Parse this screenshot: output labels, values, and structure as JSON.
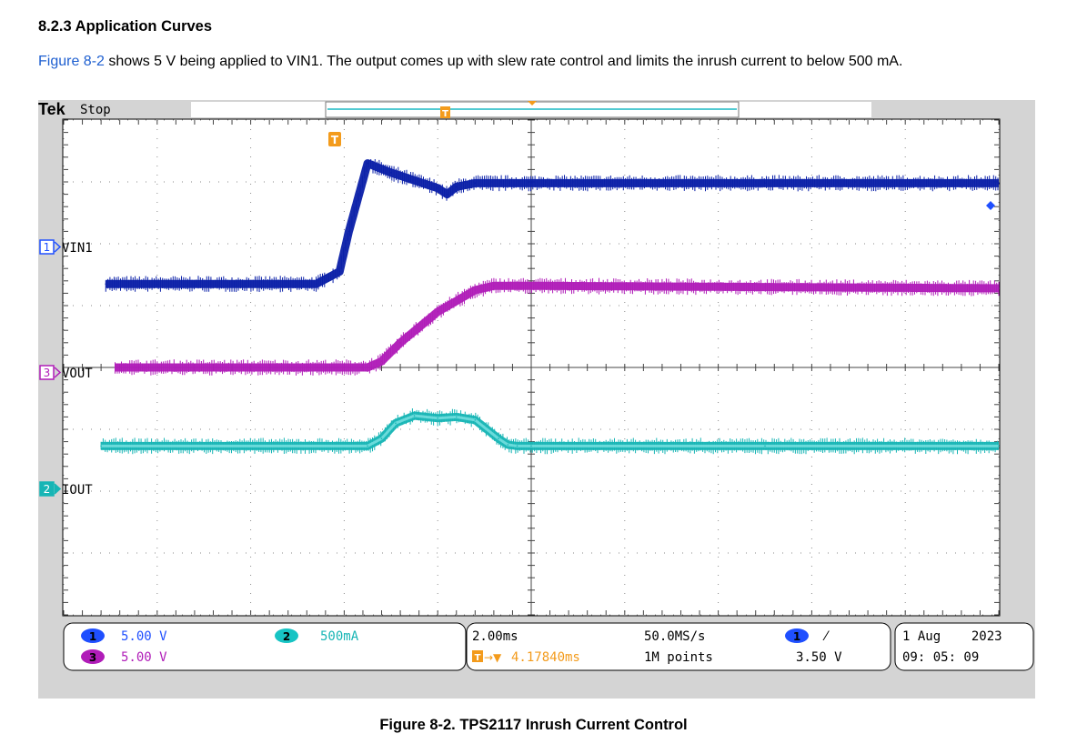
{
  "document": {
    "section_heading": "8.2.3 Application Curves",
    "paragraph_link": "Figure 8-2",
    "paragraph_text": " shows 5 V being applied to VIN1. The output comes up with slew rate control and limits the inrush current to below 500 mA.",
    "caption": "Figure 8-2. TPS2117 Inrush Current Control"
  },
  "scope": {
    "brand": "Tek",
    "run_state": "Stop",
    "trigger_marker": "T",
    "colors": {
      "ch1": "#0a1fa8",
      "ch3": "#b01cb8",
      "ch2": "#17b5b5",
      "trigger": "#f39b1c",
      "grid_bg": "#ffffff",
      "frame": "#d4d4d4"
    },
    "status": {
      "ch1_num": "1",
      "ch1_scale": "5.00 V",
      "ch3_num": "3",
      "ch3_scale": "5.00 V",
      "ch2_num": "2",
      "ch2_scale": "500mA",
      "timebase": "2.00ms",
      "trig_pos_marker": "T",
      "trig_pos_arrow": "→▼",
      "trig_pos": "4.17840ms",
      "sample_rate": "50.0MS/s",
      "record_length": "1M points",
      "trig_ch": "1",
      "trig_slope": "⁄",
      "trig_level": "3.50 V",
      "date": "1 Aug    2023",
      "time": "09: 05: 09"
    }
  },
  "chart_data": {
    "type": "line",
    "title": "",
    "xlabel": "",
    "ylabel": "",
    "x_unit": "ms",
    "xlim": [
      -10,
      10
    ],
    "ylim": [
      -4,
      4
    ],
    "grid": true,
    "series": [
      {
        "name": "VIN1",
        "channel": "1",
        "color": "#0a1fa8",
        "x": [
          -9.1,
          -4.6,
          -4.1,
          -3.9,
          -3.5,
          -3.0,
          -2.0,
          -1.8,
          -1.6,
          -1.2,
          0,
          5,
          10
        ],
        "y": [
          1.35,
          1.35,
          1.55,
          2.2,
          3.3,
          3.15,
          2.9,
          2.8,
          2.92,
          2.98,
          2.98,
          2.98,
          2.98
        ]
      },
      {
        "name": "VOUT",
        "channel": "3",
        "color": "#b01cb8",
        "x": [
          -8.9,
          -3.5,
          -3.2,
          -2.8,
          -2.0,
          -1.2,
          -0.8,
          0,
          5,
          10
        ],
        "y": [
          0.0,
          0.0,
          0.1,
          0.4,
          0.9,
          1.25,
          1.32,
          1.32,
          1.3,
          1.28
        ],
        "offset": 0
      },
      {
        "name": "IOUT",
        "channel": "2",
        "color": "#17b5b5",
        "x": [
          -9.2,
          -3.5,
          -3.2,
          -2.9,
          -2.5,
          -2.0,
          -1.6,
          -1.2,
          -0.7,
          -0.5,
          -0.3,
          0,
          5,
          10
        ],
        "y": [
          -1.27,
          -1.27,
          -1.15,
          -0.9,
          -0.78,
          -0.82,
          -0.8,
          -0.85,
          -1.15,
          -1.25,
          -1.27,
          -1.27,
          -1.27,
          -1.27
        ]
      }
    ]
  }
}
